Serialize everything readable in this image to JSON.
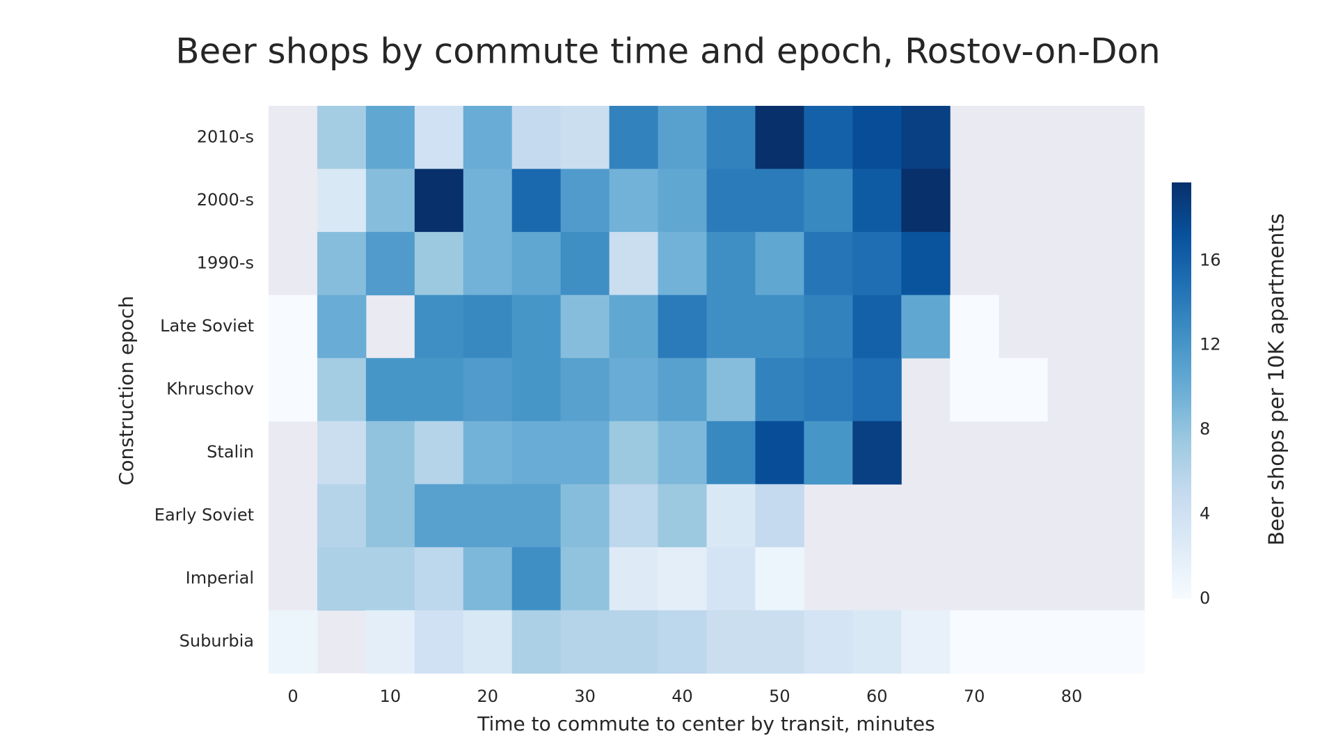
{
  "chart_data": {
    "type": "heatmap",
    "title": "Beer shops by commute time and epoch, Rostov-on-Don",
    "x_label": "Time to commute to center by transit, minutes",
    "y_label": "Construction epoch",
    "colorbar_label": "Beer shops per 10K apartments",
    "x": [
      0,
      5,
      10,
      15,
      20,
      25,
      30,
      35,
      40,
      45,
      50,
      55,
      60,
      65,
      70,
      75,
      80,
      85
    ],
    "categories": [
      "2010-s",
      "2000-s",
      "1990-s",
      "Late Soviet",
      "Khruschov",
      "Stalin",
      "Early Soviet",
      "Imperial",
      "Suburbia"
    ],
    "values": [
      [
        null,
        7,
        10.5,
        4,
        10,
        5,
        4.5,
        13.5,
        11,
        13.5,
        19.7,
        16,
        17.5,
        18.5,
        null,
        null,
        null,
        null
      ],
      [
        null,
        3,
        8.5,
        19.7,
        9.5,
        15.5,
        11.5,
        9.5,
        10.5,
        14,
        14,
        13,
        16.5,
        19.7,
        null,
        null,
        null,
        null
      ],
      [
        null,
        8.5,
        11.5,
        7.5,
        9.5,
        10.5,
        12.5,
        4.5,
        9.5,
        12.5,
        10.5,
        14.5,
        15,
        17,
        null,
        null,
        null,
        null
      ],
      [
        0,
        10,
        null,
        12.5,
        13,
        12,
        8.5,
        10.5,
        14,
        12.5,
        12.5,
        13.5,
        16,
        10.5,
        0,
        null,
        null,
        null
      ],
      [
        0,
        7,
        12,
        12,
        11.5,
        12,
        11,
        10,
        11,
        8.5,
        13.5,
        14,
        15,
        null,
        0,
        0,
        null,
        null
      ],
      [
        null,
        4.5,
        8,
        6,
        9.5,
        10,
        10,
        7.5,
        9,
        13,
        17.5,
        12,
        18.5,
        null,
        null,
        null,
        null,
        null
      ],
      [
        null,
        6,
        8,
        11,
        11,
        11,
        8.5,
        5.5,
        7.5,
        3,
        5,
        null,
        null,
        null,
        null,
        null,
        null,
        null
      ],
      [
        null,
        6.5,
        6.5,
        5.5,
        9,
        12.5,
        8,
        2.5,
        2,
        3.5,
        1,
        null,
        null,
        null,
        null,
        null,
        null,
        null
      ],
      [
        1,
        null,
        2,
        4,
        3,
        6.5,
        6,
        6,
        5.5,
        4.5,
        4.5,
        3.5,
        3,
        1.5,
        0,
        0,
        0,
        0
      ]
    ],
    "xlim": [
      -2.5,
      87.5
    ],
    "xticks": [
      0,
      10,
      20,
      30,
      40,
      50,
      60,
      70,
      80
    ],
    "clim": [
      0,
      19.7
    ],
    "cticks": [
      0,
      4,
      8,
      12,
      16
    ],
    "colormap": [
      "#f7fbff",
      "#deebf7",
      "#c6dbef",
      "#9ecae1",
      "#6baed6",
      "#4292c6",
      "#2171b5",
      "#08519c",
      "#08306b"
    ],
    "background": "#eaeaf2"
  }
}
